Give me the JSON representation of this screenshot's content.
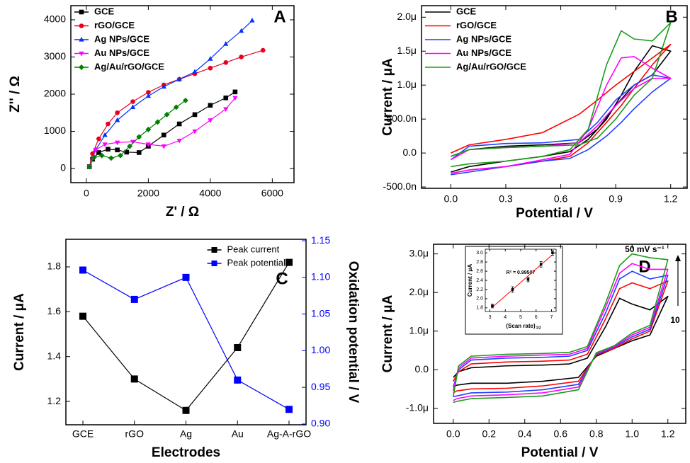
{
  "chart_data": [
    {
      "type": "line",
      "label": "A",
      "xlabel": "Z' / Ω",
      "ylabel": "Z'' / Ω",
      "xlim": [
        -500,
        6700
      ],
      "ylim": [
        -380,
        4380
      ],
      "xticks": [
        0,
        2000,
        4000,
        6000
      ],
      "yticks": [
        0,
        1000,
        2000,
        3000,
        4000
      ],
      "legend": "upper left",
      "series": [
        {
          "name": "GCE",
          "color": "#000000",
          "marker": "square",
          "x": [
            100,
            200,
            400,
            700,
            1000,
            1300,
            1700,
            2000,
            2500,
            3000,
            3500,
            4000,
            4500,
            4800
          ],
          "values": [
            50,
            250,
            430,
            520,
            500,
            440,
            430,
            600,
            900,
            1200,
            1450,
            1700,
            1900,
            2060
          ]
        },
        {
          "name": "rGO/GCE",
          "color": "#e8001c",
          "marker": "circle",
          "x": [
            100,
            200,
            400,
            700,
            1000,
            1500,
            2000,
            2500,
            3000,
            3500,
            4000,
            4500,
            5000,
            5700
          ],
          "values": [
            50,
            400,
            800,
            1200,
            1500,
            1800,
            2050,
            2250,
            2400,
            2550,
            2700,
            2850,
            3000,
            3180
          ]
        },
        {
          "name": "Ag NPs/GCE",
          "color": "#0033ff",
          "marker": "triangle",
          "x": [
            100,
            300,
            600,
            1000,
            1500,
            2000,
            2500,
            3000,
            3500,
            4000,
            4500,
            5000,
            5350
          ],
          "values": [
            50,
            500,
            900,
            1300,
            1650,
            1950,
            2200,
            2400,
            2600,
            2950,
            3350,
            3700,
            3980
          ]
        },
        {
          "name": "Au NPs/GCE",
          "color": "#ff00ff",
          "marker": "triangle-down",
          "x": [
            100,
            300,
            600,
            1000,
            1500,
            2000,
            2500,
            3000,
            3500,
            4000,
            4500,
            4800
          ],
          "values": [
            50,
            500,
            650,
            700,
            720,
            650,
            600,
            750,
            1000,
            1300,
            1600,
            1900
          ]
        },
        {
          "name": "Ag/Au/rGO/GCE",
          "color": "#008000",
          "marker": "diamond",
          "x": [
            100,
            250,
            500,
            800,
            1100,
            1400,
            1700,
            2000,
            2300,
            2600,
            2900,
            3200
          ],
          "values": [
            50,
            300,
            350,
            280,
            350,
            600,
            850,
            1050,
            1250,
            1450,
            1650,
            1830
          ]
        }
      ]
    },
    {
      "type": "line",
      "label": "B",
      "xlabel": "Potential / V",
      "ylabel": "Current / μA",
      "xlim": [
        -0.16,
        1.29
      ],
      "ylim": [
        -5.2e-07,
        2.17e-06
      ],
      "xticks": [
        {
          "value": 0,
          "label": "0.0"
        },
        0.3,
        0.6,
        0.9,
        1.2
      ],
      "yticks": [
        {
          "value": -5e-07,
          "label": "-500.0n"
        },
        {
          "value": 0,
          "label": "0.0"
        },
        {
          "value": 5e-07,
          "label": "500.0n"
        },
        {
          "value": 1e-06,
          "label": "1.0μ"
        },
        {
          "value": 1.5e-06,
          "label": "1.5μ"
        },
        {
          "value": 2e-06,
          "label": "2.0μ"
        }
      ],
      "legend": "upper left",
      "x": [
        0,
        0.1,
        0.3,
        0.5,
        0.65,
        0.75,
        0.85,
        0.93,
        1.0,
        1.1,
        1.2,
        1.1,
        1.0,
        0.9,
        0.8,
        0.7,
        0.5,
        0.3,
        0.1,
        0
      ],
      "series": [
        {
          "name": "GCE",
          "color": "#000000",
          "values": [
            -2.8e-07,
            -2e-07,
            -1.2e-07,
            -5e-08,
            2e-08,
            2e-07,
            5e-07,
            8.5e-07,
            1.2e-06,
            1.58e-06,
            1.5e-06,
            1.15e-06,
            1e-06,
            7e-07,
            3.5e-07,
            1.5e-07,
            1.2e-07,
            1e-07,
            5e-08,
            -5e-08
          ]
        },
        {
          "name": "rGO/GCE",
          "color": "#ff0000",
          "values": [
            -3e-07,
            -2.5e-07,
            -2e-07,
            -1.2e-07,
            -5e-08,
            1.5e-07,
            4.5e-07,
            7e-07,
            9.5e-07,
            1.3e-06,
            1.6e-06,
            1.4e-06,
            1.2e-06,
            1e-06,
            7.8e-07,
            5.7e-07,
            3e-07,
            2e-07,
            1.2e-07,
            0
          ]
        },
        {
          "name": "Ag NPs/GCE",
          "color": "#1f3fff",
          "values": [
            -3.2e-07,
            -2.8e-07,
            -2e-07,
            -1.2e-07,
            -8e-08,
            5e-08,
            2.5e-07,
            4.5e-07,
            6.5e-07,
            9e-07,
            1.1e-06,
            1.15e-06,
            1e-06,
            7.8e-07,
            4.5e-07,
            2e-07,
            1.5e-07,
            1.4e-07,
            1e-07,
            -1e-07
          ]
        },
        {
          "name": "Au NPs/GCE",
          "color": "#ff00ff",
          "values": [
            -3e-07,
            -2.5e-07,
            -2e-07,
            -1e-07,
            -2e-08,
            3.5e-07,
            1e-06,
            1.4e-06,
            1.42e-06,
            1.25e-06,
            1.1e-06,
            1.1e-06,
            9.5e-07,
            7e-07,
            4e-07,
            1.5e-07,
            1e-07,
            8e-08,
            5e-08,
            -1e-07
          ]
        },
        {
          "name": "Ag/Au/rGO/GCE",
          "color": "#1a9c1a",
          "values": [
            -2e-07,
            -1.6e-07,
            -1.2e-07,
            -5e-08,
            5e-08,
            3.5e-07,
            1.3e-06,
            1.8e-06,
            1.68e-06,
            1.65e-06,
            1.92e-06,
            1.1e-06,
            8.5e-07,
            5e-07,
            2.2e-07,
            1.2e-07,
            1e-07,
            8e-08,
            5e-08,
            -5e-08
          ]
        }
      ]
    },
    {
      "type": "line",
      "label": "C",
      "xlabel": "Electrodes",
      "ylabel": "Current / μA",
      "y2label": "Oxidation potential / V",
      "categories": [
        "GCE",
        "rGO",
        "Ag",
        "Au",
        "Ag-A-rGO"
      ],
      "ylim": [
        1.096,
        1.923
      ],
      "yticks": [
        1.2,
        1.4,
        1.6,
        1.8
      ],
      "y2lim": [
        0.899,
        1.152
      ],
      "y2ticks": [
        {
          "value": 0.9,
          "label": "0.90"
        },
        0.95,
        {
          "value": 1,
          "label": "1.00"
        },
        1.05,
        {
          "value": 1.1,
          "label": "1.10"
        },
        1.15
      ],
      "legend": "upper center",
      "series": [
        {
          "name": "Peak current",
          "color": "#000000",
          "marker": "square",
          "values": [
            1.58,
            1.3,
            1.16,
            1.44,
            1.82
          ]
        },
        {
          "name": "Peak potential",
          "color": "#0000ff",
          "marker": "square",
          "axis": "y2",
          "values": [
            1.11,
            1.07,
            1.1,
            0.96,
            0.92
          ]
        }
      ]
    },
    {
      "type": "line",
      "label": "D",
      "xlabel": "Potential / V",
      "ylabel": "Current / μA",
      "xlim": [
        -0.11,
        1.3
      ],
      "ylim": [
        -1.39e-06,
        3.25e-06
      ],
      "xticks": [
        {
          "value": 0,
          "label": "0.0"
        },
        0.2,
        0.4,
        0.6,
        0.8,
        {
          "value": 1,
          "label": "1.0"
        },
        1.2
      ],
      "yticks": [
        {
          "value": -1e-06,
          "label": "-1.0μ"
        },
        {
          "value": 0,
          "label": "0.0"
        },
        {
          "value": 1e-06,
          "label": "1.0μ"
        },
        {
          "value": 2e-06,
          "label": "2.0μ"
        },
        {
          "value": 3e-06,
          "label": "3.0μ"
        }
      ],
      "annotations": [
        "50 mV s⁻¹",
        "10"
      ],
      "x": [
        0,
        0.03,
        0.1,
        0.3,
        0.5,
        0.65,
        0.75,
        0.85,
        0.93,
        1.0,
        1.1,
        1.2,
        1.1,
        1.0,
        0.9,
        0.8,
        0.7,
        0.5,
        0.3,
        0.1,
        0.02,
        0
      ],
      "series": [
        {
          "color": "#000000",
          "values": [
            -2e-07,
            -5e-08,
            5e-08,
            1e-07,
            1.2e-07,
            1.5e-07,
            3e-07,
            1.1e-06,
            1.85e-06,
            1.7e-06,
            1.55e-06,
            1.9e-06,
            9e-07,
            7.5e-07,
            5.5e-07,
            3.5e-07,
            -2e-07,
            -3e-07,
            -3.5e-07,
            -3.5e-07,
            -4e-07,
            -4.5e-07
          ]
        },
        {
          "color": "#ff0000",
          "values": [
            -3e-07,
            -5e-08,
            1.5e-07,
            2e-07,
            2.2e-07,
            2.5e-07,
            4e-07,
            1.3e-06,
            2.1e-06,
            2.25e-06,
            2.1e-06,
            2.3e-06,
            1e-06,
            8e-07,
            5.5e-07,
            3.8e-07,
            -3e-07,
            -4.2e-07,
            -4.8e-07,
            -5e-07,
            -5.5e-07,
            -6e-07
          ]
        },
        {
          "color": "#1f3fff",
          "values": [
            -4.5e-07,
            0,
            2.5e-07,
            3e-07,
            3.2e-07,
            3.5e-07,
            5e-07,
            1.45e-06,
            2.35e-06,
            2.55e-06,
            2.35e-06,
            2.45e-06,
            1.05e-06,
            8.5e-07,
            5.8e-07,
            4e-07,
            -3.8e-07,
            -5.2e-07,
            -5.8e-07,
            -6e-07,
            -6.8e-07,
            -7e-07
          ]
        },
        {
          "color": "#ff00ff",
          "values": [
            -5.5e-07,
            5e-08,
            3e-07,
            3.5e-07,
            3.8e-07,
            4e-07,
            5.5e-07,
            1.6e-06,
            2.5e-06,
            2.75e-06,
            2.6e-06,
            2.6e-06,
            1.1e-06,
            9e-07,
            6e-07,
            4.2e-07,
            -4.5e-07,
            -6e-07,
            -6.5e-07,
            -6.8e-07,
            -7.5e-07,
            -8e-07
          ]
        },
        {
          "color": "#1a9c1a",
          "values": [
            -7e-07,
            1e-07,
            3.5e-07,
            4e-07,
            4.2e-07,
            4.5e-07,
            6e-07,
            1.7e-06,
            2.7e-06,
            3e-06,
            2.9e-06,
            2.85e-06,
            1.15e-06,
            9.5e-07,
            6.2e-07,
            4.4e-07,
            -5.2e-07,
            -6.8e-07,
            -7.2e-07,
            -7.5e-07,
            -8.2e-07,
            -8.5e-07
          ]
        }
      ]
    },
    {
      "type": "scatter",
      "ylabel": "Current / μA",
      "xlabel": "(Scan rate)",
      "xlabel_superscript": "1/2",
      "annotation": "R² = 0.99507",
      "xlim": [
        2.7,
        7.3
      ],
      "ylim": [
        1.72,
        3.08
      ],
      "xticks": [
        3,
        4,
        5,
        6,
        7
      ],
      "yticks": [
        1.8,
        {
          "value": 2,
          "label": "2.0"
        },
        2.2,
        2.4,
        2.6,
        2.8,
        {
          "value": 3,
          "label": "3.0"
        }
      ],
      "fit_color": "#ff0000",
      "series": [
        {
          "color": "#000000",
          "marker": "square",
          "x": [
            3.16,
            4.47,
            5.48,
            6.32,
            7.07
          ],
          "values": [
            1.84,
            2.2,
            2.42,
            2.75,
            3.0
          ],
          "errors": [
            0.04,
            0.06,
            0.05,
            0.06,
            0.05
          ]
        }
      ]
    }
  ]
}
